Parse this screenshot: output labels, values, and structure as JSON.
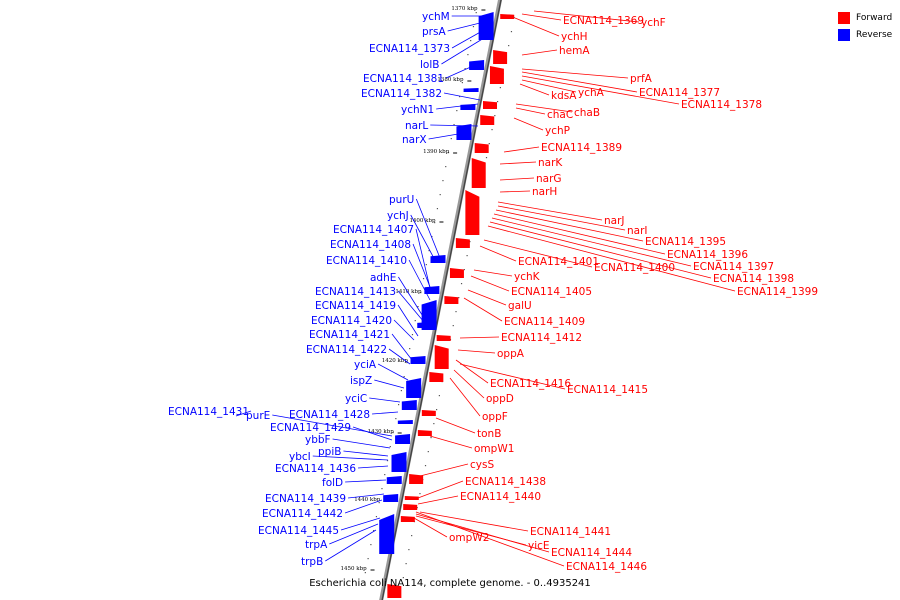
{
  "legend": {
    "items": [
      {
        "label": "Forward",
        "color": "#ff0000"
      },
      {
        "label": "Reverse",
        "color": "#0000ff"
      }
    ]
  },
  "caption": "Escherichia coli NA114, complete genome. - 0..4935241",
  "ticks": [
    "1370 kbp",
    "1380 kbp",
    "1390 kbp",
    "1400 kbp",
    "1410 kbp",
    "1420 kbp",
    "1430 kbp",
    "1440 kbp",
    "1450 kbp"
  ],
  "forward_labels": [
    "ychF",
    "ECNA114_1369",
    "ychH",
    "hemA",
    "prfA",
    "ECNA114_1377",
    "ECNA114_1378",
    "ychA",
    "kdsA",
    "chaB",
    "chaC",
    "ychP",
    "ECNA114_1389",
    "narK",
    "narG",
    "narH",
    "narJ",
    "narI",
    "ECNA114_1395",
    "ECNA114_1396",
    "ECNA114_1397",
    "ECNA114_1398",
    "ECNA114_1399",
    "ECNA114_1401",
    "ECNA114_1400",
    "ychK",
    "ECNA114_1405",
    "galU",
    "ECNA114_1409",
    "ECNA114_1412",
    "oppA",
    "ECNA114_1416",
    "ECNA114_1415",
    "oppD",
    "oppF",
    "tonB",
    "ompW1",
    "cysS",
    "ECNA114_1438",
    "ECNA114_1440",
    "ECNA114_1441",
    "ompW2",
    "yicE",
    "ECNA114_1444",
    "ECNA114_1446"
  ],
  "reverse_labels": [
    "ychM",
    "prsA",
    "ECNA114_1373",
    "lolB",
    "ECNA114_1381",
    "ECNA114_1382",
    "ychN1",
    "narL",
    "narX",
    "purU",
    "ychJ",
    "ECNA114_1407",
    "ECNA114_1408",
    "ECNA114_1410",
    "adhE",
    "ECNA114_1413",
    "ECNA114_1419",
    "ECNA114_1420",
    "ECNA114_1421",
    "ECNA114_1422",
    "yciA",
    "ispZ",
    "yciC",
    "ECNA114_1428",
    "ECNA114_1431",
    "purE",
    "ECNA114_1429",
    "ybbF",
    "ppiB",
    "ybcI",
    "ECNA114_1436",
    "folD",
    "ECNA114_1439",
    "ECNA114_1442",
    "ECNA114_1445",
    "trpA",
    "trpB"
  ]
}
